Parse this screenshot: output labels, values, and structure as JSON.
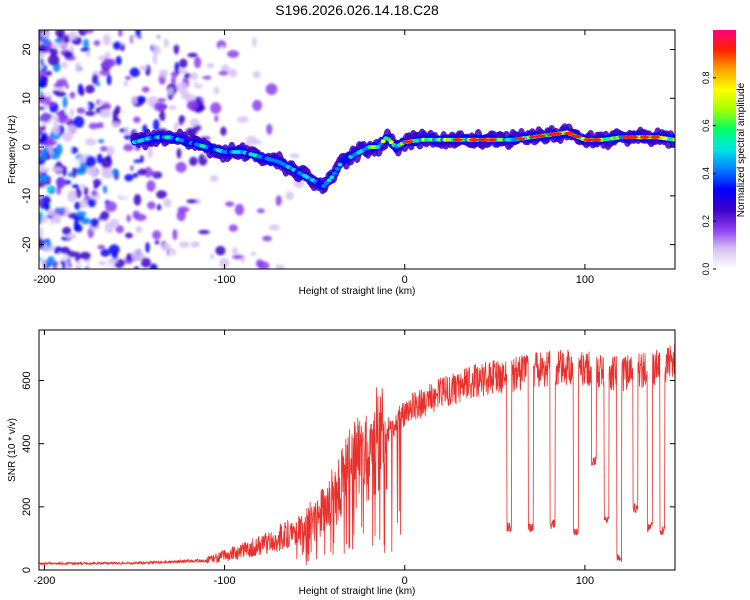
{
  "title": "S196.2026.026.14.18.C28",
  "chart_data": [
    {
      "type": "heatmap",
      "name": "spectrogram",
      "xlabel": "Height of straight line (km)",
      "ylabel": "Frequency (Hz)",
      "xlim": [
        -203,
        150
      ],
      "ylim": [
        -25,
        24
      ],
      "xticks": [
        -200,
        -100,
        0,
        100
      ],
      "yticks": [
        -20,
        -10,
        0,
        10,
        20
      ],
      "ridge": {
        "x": [
          -150,
          -140,
          -130,
          -120,
          -110,
          -100,
          -90,
          -80,
          -70,
          -60,
          -50,
          -45,
          -40,
          -35,
          -30,
          -25,
          -20,
          -15,
          -10,
          -5,
          0,
          10,
          20,
          30,
          40,
          50,
          60,
          70,
          80,
          90,
          100,
          110,
          120,
          130,
          140,
          150
        ],
        "freq": [
          1,
          2,
          2,
          1,
          0,
          -1,
          -1,
          -2,
          -3,
          -5,
          -7,
          -8,
          -6,
          -3,
          -2,
          -1,
          0,
          0,
          2,
          0,
          1,
          1.5,
          1.5,
          1.5,
          1.5,
          1.5,
          1.5,
          2,
          2.5,
          3,
          1.5,
          1.5,
          2,
          2,
          2,
          1.5
        ]
      },
      "colorbar": {
        "label": "Normalized spectral amplitude",
        "range": [
          0,
          1
        ],
        "ticks": [
          "0.0",
          "0.2",
          "0.4",
          "0.6",
          "0.8"
        ],
        "colors": [
          "#ffffff",
          "#d7c2f5",
          "#8a3cf0",
          "#3a00c8",
          "#0000ff",
          "#0080ff",
          "#00e5e5",
          "#00ff66",
          "#a5ff00",
          "#ffff00",
          "#ffa500",
          "#ff2000",
          "#ff0080"
        ]
      }
    },
    {
      "type": "line",
      "name": "snr",
      "xlabel": "Height of straight line (km)",
      "ylabel": "SNR (10 * v/v)",
      "xlim": [
        -203,
        150
      ],
      "ylim": [
        0,
        760
      ],
      "xticks": [
        -200,
        -100,
        0,
        100
      ],
      "yticks": [
        0,
        200,
        400,
        600
      ],
      "color": "#e8302c",
      "envelope": {
        "x": [
          -203,
          -150,
          -110,
          -90,
          -70,
          -50,
          -40,
          -30,
          -20,
          -10,
          0,
          20,
          40,
          60,
          80,
          100,
          120,
          140,
          150
        ],
        "y": [
          20,
          22,
          30,
          60,
          100,
          160,
          230,
          320,
          380,
          440,
          500,
          560,
          600,
          620,
          640,
          640,
          620,
          640,
          660
        ]
      },
      "dropouts": [
        {
          "x": 58,
          "y": 120
        },
        {
          "x": 70,
          "y": 120
        },
        {
          "x": 82,
          "y": 130
        },
        {
          "x": 95,
          "y": 110
        },
        {
          "x": 105,
          "y": 330
        },
        {
          "x": 112,
          "y": 150
        },
        {
          "x": 119,
          "y": 20
        },
        {
          "x": 128,
          "y": 180
        },
        {
          "x": 136,
          "y": 120
        },
        {
          "x": 143,
          "y": 110
        }
      ]
    }
  ]
}
